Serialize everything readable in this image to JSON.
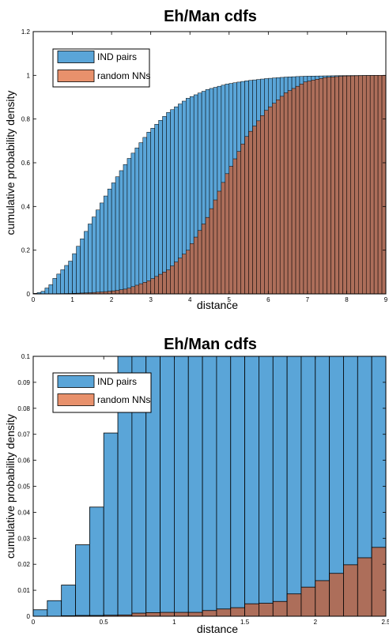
{
  "colors": {
    "ind": "#5aa5d8",
    "random": "#ad6e5a",
    "legend_random": "#e8916c",
    "edge": "#000000"
  },
  "chart_data": [
    {
      "type": "bar",
      "title": "Eh/Man cdfs",
      "xlabel": "distance",
      "ylabel": "cumulative probability density",
      "xlim": [
        0,
        9
      ],
      "ylim": [
        0,
        1.2
      ],
      "bin_width": 0.1,
      "xticks": [
        "0",
        "1",
        "2",
        "3",
        "4",
        "5",
        "6",
        "7",
        "8",
        "9"
      ],
      "yticks": [
        "0",
        "0.2",
        "0.4",
        "0.6",
        "0.8",
        "1",
        "1.2"
      ],
      "legend_position": "top-left",
      "series": [
        {
          "name": "IND pairs",
          "cdf_knots": [
            [
              0,
              0
            ],
            [
              0.1,
              0.0025
            ],
            [
              0.2,
              0.006
            ],
            [
              0.3,
              0.012
            ],
            [
              0.4,
              0.027
            ],
            [
              0.5,
              0.042
            ],
            [
              0.6,
              0.071
            ],
            [
              1.0,
              0.15
            ],
            [
              1.5,
              0.32
            ],
            [
              2.0,
              0.48
            ],
            [
              2.5,
              0.62
            ],
            [
              3.0,
              0.74
            ],
            [
              3.5,
              0.83
            ],
            [
              4.0,
              0.895
            ],
            [
              4.5,
              0.935
            ],
            [
              5.0,
              0.96
            ],
            [
              5.5,
              0.975
            ],
            [
              6.0,
              0.985
            ],
            [
              6.5,
              0.992
            ],
            [
              7.0,
              0.996
            ],
            [
              8.0,
              0.999
            ],
            [
              9.0,
              1.0
            ]
          ]
        },
        {
          "name": "random NNs",
          "cdf_knots": [
            [
              0,
              0
            ],
            [
              0.5,
              0.0005
            ],
            [
              0.7,
              0.0012
            ],
            [
              1.0,
              0.002
            ],
            [
              1.3,
              0.004
            ],
            [
              1.5,
              0.0055
            ],
            [
              1.8,
              0.009
            ],
            [
              2.0,
              0.012
            ],
            [
              2.2,
              0.016
            ],
            [
              2.4,
              0.022
            ],
            [
              2.5,
              0.0265
            ],
            [
              3.0,
              0.06
            ],
            [
              3.5,
              0.11
            ],
            [
              4.0,
              0.2
            ],
            [
              4.5,
              0.35
            ],
            [
              5.0,
              0.55
            ],
            [
              5.5,
              0.72
            ],
            [
              6.0,
              0.84
            ],
            [
              6.5,
              0.92
            ],
            [
              7.0,
              0.97
            ],
            [
              7.5,
              0.99
            ],
            [
              8.0,
              0.997
            ],
            [
              9.0,
              1.0
            ]
          ]
        }
      ]
    },
    {
      "type": "bar",
      "title": "Eh/Man cdfs",
      "xlabel": "distance",
      "ylabel": "cumulative probability density",
      "xlim": [
        0,
        2.5
      ],
      "ylim": [
        0,
        0.1
      ],
      "bin_width": 0.1,
      "xticks": [
        "0",
        "0.5",
        "1",
        "1.5",
        "2",
        "2.5"
      ],
      "yticks": [
        "0",
        "0.01",
        "0.02",
        "0.03",
        "0.04",
        "0.05",
        "0.06",
        "0.07",
        "0.08",
        "0.09",
        "0.1"
      ],
      "legend_position": "top-left",
      "series": [
        {
          "name": "IND pairs",
          "values": [
            0.0025,
            0.006,
            0.012,
            0.0275,
            0.042,
            0.0705,
            0.1,
            0.1,
            0.1,
            0.1,
            0.1,
            0.1,
            0.1,
            0.1,
            0.1,
            0.1,
            0.1,
            0.1,
            0.1,
            0.1,
            0.1,
            0.1,
            0.1,
            0.1,
            0.1
          ]
        },
        {
          "name": "random NNs",
          "values": [
            0.0,
            0.0,
            0.0002,
            0.0003,
            0.0003,
            0.0004,
            0.0005,
            0.0012,
            0.0014,
            0.0015,
            0.0015,
            0.0015,
            0.0022,
            0.0028,
            0.0033,
            0.0048,
            0.005,
            0.0057,
            0.0086,
            0.0112,
            0.0137,
            0.0165,
            0.0198,
            0.0225,
            0.0265
          ]
        }
      ]
    }
  ]
}
